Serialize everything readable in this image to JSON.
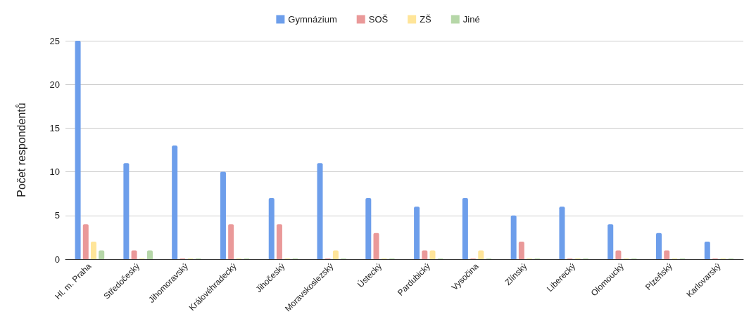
{
  "chart_data": {
    "type": "bar",
    "ylabel": "Počet respondentů",
    "categories": [
      "Hl. m. Praha",
      "Středočeský",
      "Jihomoravský",
      "Královéhradecký",
      "Jihočeský",
      "Moravskoslezský",
      "Ústecký",
      "Pardubický",
      "Vysočina",
      "Zlínský",
      "Liberecký",
      "Olomoucký",
      "Plzeňský",
      "Karlovarský"
    ],
    "series": [
      {
        "name": "Gymnázium",
        "color": "#6d9eeb",
        "values": [
          25,
          11,
          13,
          10,
          7,
          11,
          7,
          6,
          7,
          5,
          6,
          4,
          3,
          2
        ]
      },
      {
        "name": "SOŠ",
        "color": "#ea9999",
        "values": [
          4,
          1,
          0,
          4,
          4,
          0,
          3,
          1,
          0,
          2,
          0,
          1,
          1,
          0
        ]
      },
      {
        "name": "ZŠ",
        "color": "#ffe599",
        "values": [
          2,
          0,
          0,
          0,
          0,
          1,
          0,
          1,
          1,
          0,
          0,
          0,
          0,
          0
        ]
      },
      {
        "name": "Jiné",
        "color": "#b6d7a8",
        "values": [
          1,
          1,
          0,
          0,
          0,
          0,
          0,
          0,
          0,
          0,
          0,
          0,
          0,
          0
        ]
      }
    ],
    "ylim": [
      0,
      25
    ],
    "yticks": [
      0,
      5,
      10,
      15,
      20,
      25
    ],
    "grid": "y",
    "legend": "top"
  }
}
